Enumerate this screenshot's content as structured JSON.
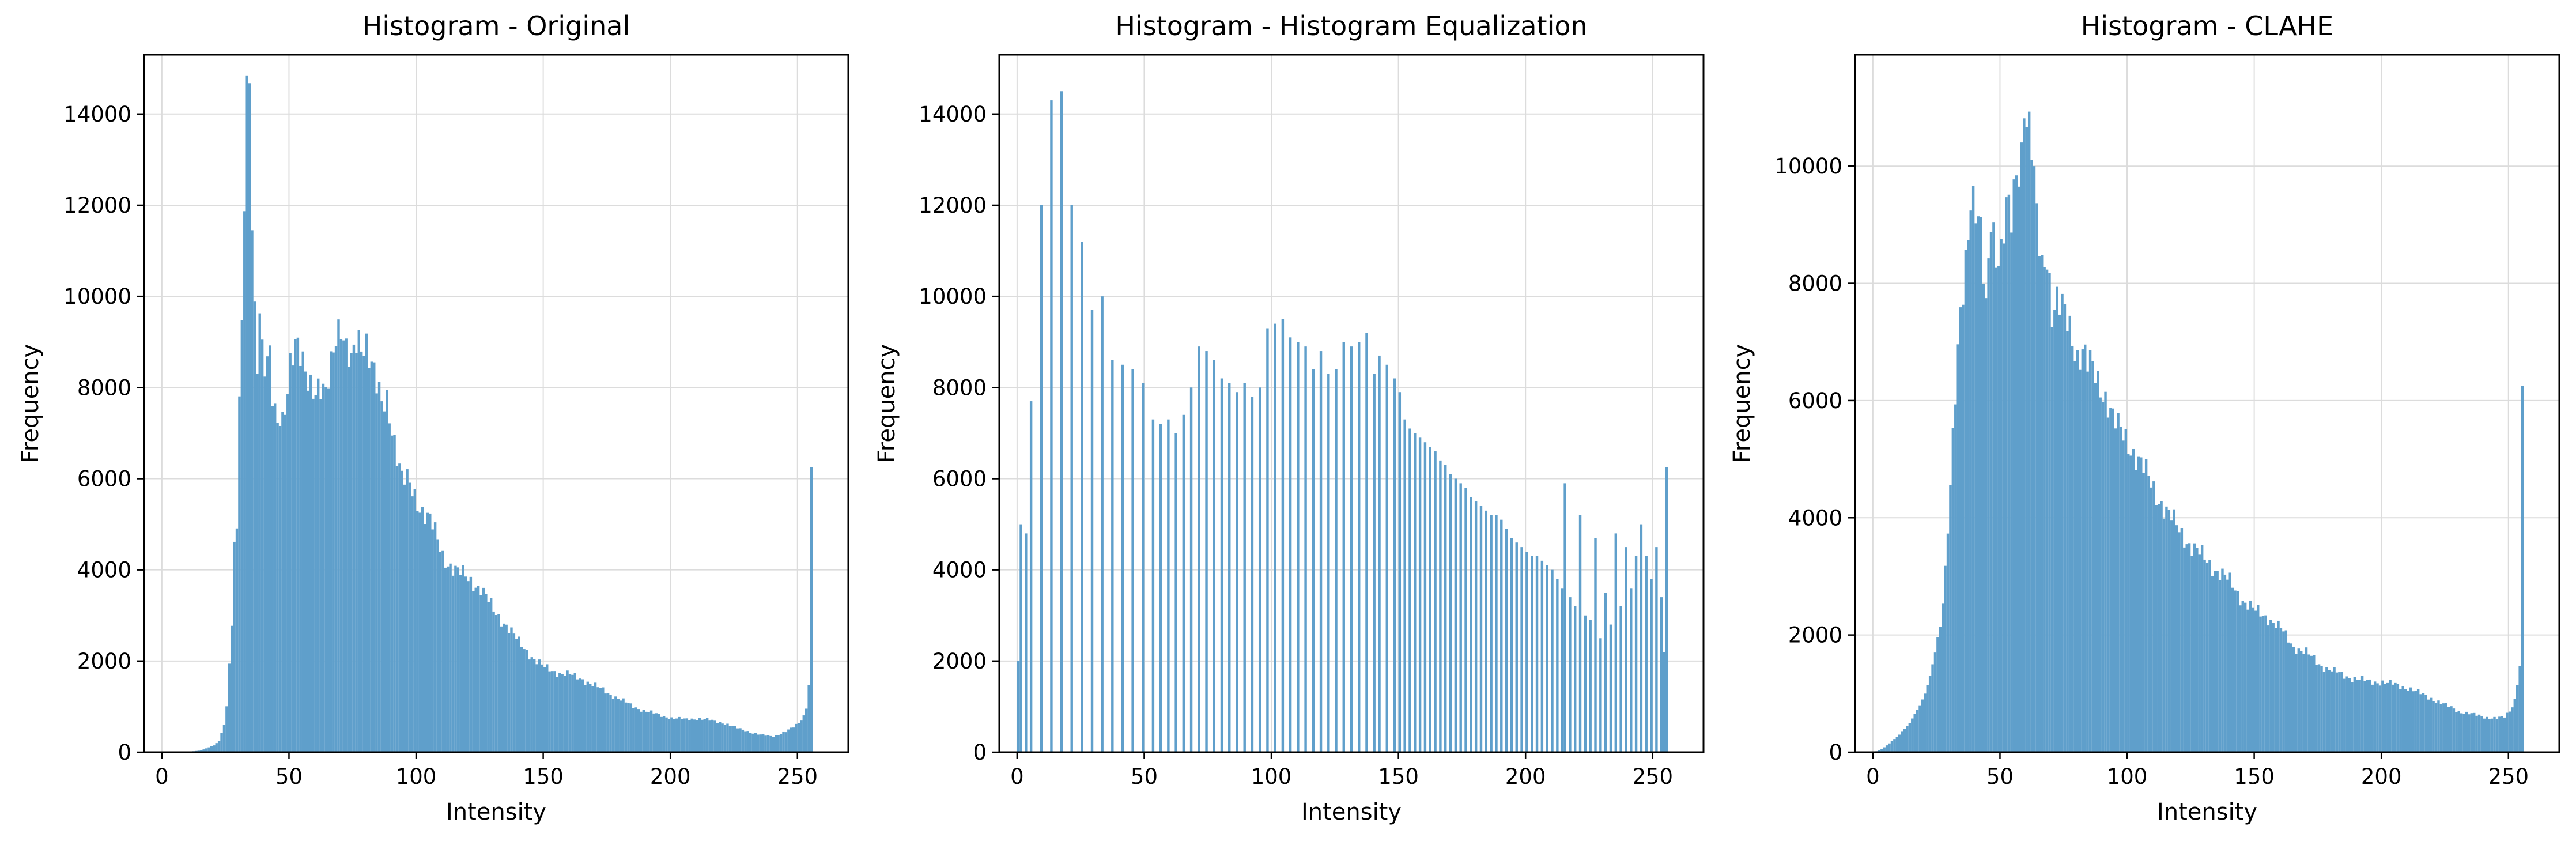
{
  "chart_data": [
    {
      "type": "bar",
      "title": "Histogram - Original",
      "xlabel": "Intensity",
      "ylabel": "Frequency",
      "xlim": [
        -7,
        270
      ],
      "ylim": [
        0,
        15300
      ],
      "xticks": [
        0,
        50,
        100,
        150,
        200,
        250
      ],
      "yticks": [
        0,
        2000,
        4000,
        6000,
        8000,
        10000,
        12000,
        14000
      ],
      "grid": true,
      "color": "#5f9fcb",
      "bins": 256,
      "anchors": [
        [
          0,
          0
        ],
        [
          10,
          10
        ],
        [
          15,
          40
        ],
        [
          20,
          150
        ],
        [
          22,
          250
        ],
        [
          24,
          600
        ],
        [
          25,
          1000
        ],
        [
          26,
          2000
        ],
        [
          27,
          2900
        ],
        [
          28,
          4500
        ],
        [
          29,
          5000
        ],
        [
          30,
          7700
        ],
        [
          31,
          9000
        ],
        [
          32,
          12000
        ],
        [
          33,
          14400
        ],
        [
          34,
          14500
        ],
        [
          35,
          12000
        ],
        [
          36,
          9800
        ],
        [
          37,
          8600
        ],
        [
          38,
          10000
        ],
        [
          39,
          8800
        ],
        [
          40,
          8400
        ],
        [
          41,
          8500
        ],
        [
          42,
          8500
        ],
        [
          43,
          7700
        ],
        [
          44,
          7400
        ],
        [
          45,
          7200
        ],
        [
          46,
          7500
        ],
        [
          47,
          7400
        ],
        [
          48,
          7700
        ],
        [
          50,
          8500
        ],
        [
          52,
          8800
        ],
        [
          54,
          8600
        ],
        [
          56,
          8400
        ],
        [
          58,
          8200
        ],
        [
          60,
          8000
        ],
        [
          62,
          7900
        ],
        [
          64,
          7700
        ],
        [
          66,
          8500
        ],
        [
          68,
          9300
        ],
        [
          70,
          9500
        ],
        [
          72,
          8800
        ],
        [
          74,
          8400
        ],
        [
          76,
          8900
        ],
        [
          78,
          9000
        ],
        [
          80,
          9100
        ],
        [
          82,
          8600
        ],
        [
          84,
          8000
        ],
        [
          86,
          7500
        ],
        [
          88,
          7700
        ],
        [
          90,
          7200
        ],
        [
          92,
          6600
        ],
        [
          94,
          6000
        ],
        [
          96,
          5900
        ],
        [
          98,
          5700
        ],
        [
          100,
          5500
        ],
        [
          105,
          5100
        ],
        [
          110,
          4300
        ],
        [
          115,
          4000
        ],
        [
          120,
          3800
        ],
        [
          125,
          3600
        ],
        [
          130,
          3100
        ],
        [
          135,
          2800
        ],
        [
          140,
          2400
        ],
        [
          145,
          2100
        ],
        [
          150,
          1850
        ],
        [
          155,
          1750
        ],
        [
          160,
          1700
        ],
        [
          165,
          1600
        ],
        [
          170,
          1450
        ],
        [
          175,
          1300
        ],
        [
          180,
          1150
        ],
        [
          185,
          1000
        ],
        [
          190,
          900
        ],
        [
          195,
          820
        ],
        [
          200,
          750
        ],
        [
          205,
          720
        ],
        [
          210,
          740
        ],
        [
          215,
          700
        ],
        [
          220,
          650
        ],
        [
          225,
          550
        ],
        [
          230,
          450
        ],
        [
          235,
          380
        ],
        [
          240,
          350
        ],
        [
          245,
          450
        ],
        [
          248,
          550
        ],
        [
          250,
          650
        ],
        [
          252,
          800
        ],
        [
          253,
          1000
        ],
        [
          254,
          1500
        ],
        [
          255,
          2900
        ]
      ],
      "overrides": [
        [
          256,
          6250
        ]
      ]
    },
    {
      "type": "bar",
      "title": "Histogram - Histogram Equalization",
      "xlabel": "Intensity",
      "ylabel": "Frequency",
      "xlim": [
        -7,
        270
      ],
      "ylim": [
        0,
        15300
      ],
      "xticks": [
        0,
        50,
        100,
        150,
        200,
        250
      ],
      "yticks": [
        0,
        2000,
        4000,
        6000,
        8000,
        10000,
        12000,
        14000
      ],
      "grid": true,
      "color": "#5f9fcb",
      "bins": 256,
      "values": [
        [
          0,
          2000
        ],
        [
          1,
          5000
        ],
        [
          3,
          4800
        ],
        [
          5,
          7700
        ],
        [
          9,
          12000
        ],
        [
          13,
          14300
        ],
        [
          17,
          14500
        ],
        [
          21,
          12000
        ],
        [
          25,
          11200
        ],
        [
          29,
          9700
        ],
        [
          33,
          10000
        ],
        [
          37,
          8600
        ],
        [
          41,
          8500
        ],
        [
          45,
          8400
        ],
        [
          49,
          8100
        ],
        [
          53,
          7300
        ],
        [
          56,
          7200
        ],
        [
          59,
          7300
        ],
        [
          62,
          7000
        ],
        [
          65,
          7400
        ],
        [
          68,
          8000
        ],
        [
          71,
          8900
        ],
        [
          74,
          8800
        ],
        [
          77,
          8600
        ],
        [
          80,
          8200
        ],
        [
          83,
          8100
        ],
        [
          86,
          7900
        ],
        [
          89,
          8100
        ],
        [
          92,
          7800
        ],
        [
          95,
          8000
        ],
        [
          98,
          9300
        ],
        [
          101,
          9400
        ],
        [
          104,
          9500
        ],
        [
          107,
          9100
        ],
        [
          110,
          9000
        ],
        [
          113,
          8900
        ],
        [
          116,
          8400
        ],
        [
          119,
          8800
        ],
        [
          122,
          8300
        ],
        [
          125,
          8400
        ],
        [
          128,
          9000
        ],
        [
          131,
          8900
        ],
        [
          134,
          9000
        ],
        [
          137,
          9200
        ],
        [
          140,
          8300
        ],
        [
          142,
          8700
        ],
        [
          145,
          8500
        ],
        [
          148,
          8200
        ],
        [
          150,
          7900
        ],
        [
          152,
          7300
        ],
        [
          154,
          7100
        ],
        [
          156,
          7000
        ],
        [
          158,
          6900
        ],
        [
          160,
          6800
        ],
        [
          162,
          6700
        ],
        [
          164,
          6600
        ],
        [
          166,
          6400
        ],
        [
          168,
          6300
        ],
        [
          170,
          6100
        ],
        [
          172,
          6000
        ],
        [
          174,
          5900
        ],
        [
          176,
          5800
        ],
        [
          178,
          5600
        ],
        [
          180,
          5500
        ],
        [
          182,
          5400
        ],
        [
          184,
          5300
        ],
        [
          186,
          5200
        ],
        [
          188,
          5200
        ],
        [
          190,
          5100
        ],
        [
          192,
          4900
        ],
        [
          194,
          4700
        ],
        [
          196,
          4600
        ],
        [
          198,
          4500
        ],
        [
          200,
          4400
        ],
        [
          202,
          4300
        ],
        [
          204,
          4300
        ],
        [
          206,
          4200
        ],
        [
          208,
          4100
        ],
        [
          210,
          4000
        ],
        [
          212,
          3800
        ],
        [
          214,
          3600
        ],
        [
          215,
          5900
        ],
        [
          217,
          3400
        ],
        [
          219,
          3200
        ],
        [
          221,
          5200
        ],
        [
          223,
          3000
        ],
        [
          225,
          2900
        ],
        [
          227,
          4700
        ],
        [
          229,
          2500
        ],
        [
          231,
          3500
        ],
        [
          233,
          2800
        ],
        [
          235,
          4800
        ],
        [
          237,
          3200
        ],
        [
          239,
          4500
        ],
        [
          241,
          3600
        ],
        [
          243,
          4300
        ],
        [
          245,
          5000
        ],
        [
          247,
          4300
        ],
        [
          249,
          3800
        ],
        [
          251,
          4500
        ],
        [
          253,
          3400
        ],
        [
          254,
          2200
        ],
        [
          256,
          6250
        ]
      ]
    },
    {
      "type": "bar",
      "title": "Histogram - CLAHE",
      "xlabel": "Intensity",
      "ylabel": "Frequency",
      "xlim": [
        -7,
        270
      ],
      "ylim": [
        0,
        11900
      ],
      "xticks": [
        0,
        50,
        100,
        150,
        200,
        250
      ],
      "yticks": [
        0,
        2000,
        4000,
        6000,
        8000,
        10000
      ],
      "grid": true,
      "color": "#5f9fcb",
      "bins": 256,
      "anchors": [
        [
          0,
          0
        ],
        [
          3,
          50
        ],
        [
          6,
          150
        ],
        [
          10,
          300
        ],
        [
          14,
          500
        ],
        [
          18,
          800
        ],
        [
          20,
          1000
        ],
        [
          22,
          1300
        ],
        [
          24,
          1700
        ],
        [
          26,
          2200
        ],
        [
          28,
          3100
        ],
        [
          30,
          4500
        ],
        [
          32,
          6000
        ],
        [
          34,
          7500
        ],
        [
          36,
          8500
        ],
        [
          38,
          9600
        ],
        [
          40,
          9200
        ],
        [
          42,
          8700
        ],
        [
          44,
          7500
        ],
        [
          46,
          9300
        ],
        [
          48,
          8600
        ],
        [
          50,
          8500
        ],
        [
          52,
          9200
        ],
        [
          54,
          9000
        ],
        [
          56,
          9900
        ],
        [
          58,
          10300
        ],
        [
          59,
          11300
        ],
        [
          60,
          10900
        ],
        [
          62,
          10300
        ],
        [
          64,
          9000
        ],
        [
          66,
          8200
        ],
        [
          68,
          8600
        ],
        [
          70,
          7600
        ],
        [
          72,
          7700
        ],
        [
          74,
          7500
        ],
        [
          76,
          7300
        ],
        [
          78,
          7100
        ],
        [
          80,
          6800
        ],
        [
          82,
          6900
        ],
        [
          84,
          6600
        ],
        [
          86,
          6500
        ],
        [
          88,
          6300
        ],
        [
          90,
          6200
        ],
        [
          92,
          6000
        ],
        [
          94,
          5700
        ],
        [
          96,
          5500
        ],
        [
          98,
          5400
        ],
        [
          100,
          5300
        ],
        [
          105,
          4900
        ],
        [
          110,
          4500
        ],
        [
          115,
          4100
        ],
        [
          120,
          3800
        ],
        [
          125,
          3500
        ],
        [
          130,
          3300
        ],
        [
          135,
          3100
        ],
        [
          140,
          2900
        ],
        [
          145,
          2600
        ],
        [
          150,
          2400
        ],
        [
          155,
          2300
        ],
        [
          160,
          2100
        ],
        [
          165,
          1800
        ],
        [
          170,
          1700
        ],
        [
          175,
          1500
        ],
        [
          180,
          1400
        ],
        [
          185,
          1300
        ],
        [
          190,
          1250
        ],
        [
          195,
          1200
        ],
        [
          200,
          1200
        ],
        [
          205,
          1150
        ],
        [
          210,
          1100
        ],
        [
          215,
          1000
        ],
        [
          220,
          900
        ],
        [
          225,
          800
        ],
        [
          230,
          700
        ],
        [
          235,
          650
        ],
        [
          240,
          600
        ],
        [
          245,
          580
        ],
        [
          248,
          600
        ],
        [
          250,
          700
        ],
        [
          252,
          900
        ],
        [
          254,
          1500
        ],
        [
          255,
          2100
        ]
      ],
      "overrides": [
        [
          256,
          6250
        ]
      ]
    }
  ]
}
